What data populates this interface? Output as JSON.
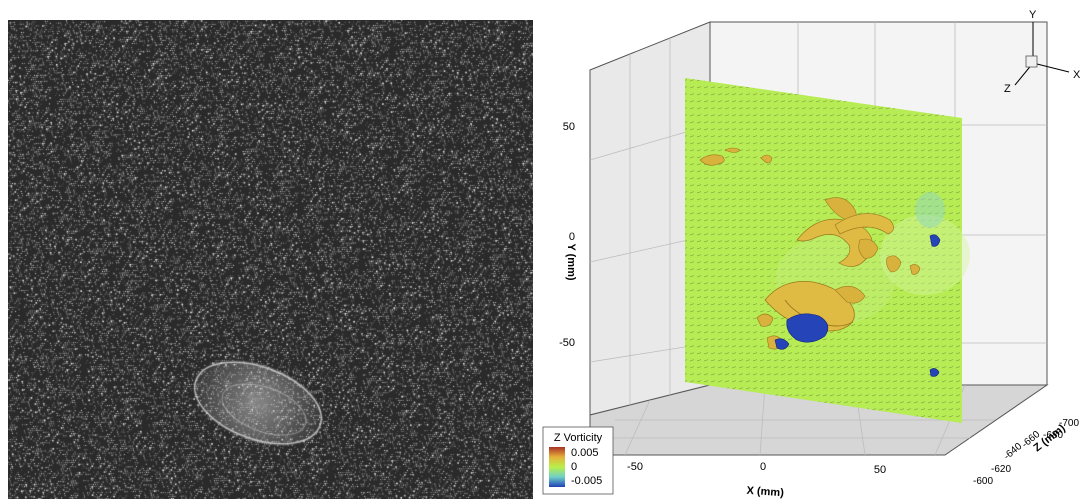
{
  "left_panel": {
    "subject": "jellyfish",
    "background": "particle-seeded dark water"
  },
  "right_panel": {
    "axes": {
      "x_title": "X (mm)",
      "y_title": "Y (mm)",
      "z_title": "Z (mm)",
      "x_ticks": [
        "-50",
        "0",
        "50"
      ],
      "y_ticks": [
        "50",
        "0",
        "-50"
      ],
      "z_ticks": [
        "-700",
        "-680",
        "-660",
        "-640",
        "-620",
        "-600"
      ]
    },
    "orientation_axes": {
      "y": "Y",
      "x": "X",
      "z": "Z"
    },
    "legend": {
      "title": "Z Vorticity",
      "labels": [
        "0.005",
        "0",
        "-0.005"
      ],
      "colors": [
        "#c0392b",
        "#b8f04a",
        "#1f3fb8"
      ]
    },
    "colors": {
      "plane": "#b5ec52",
      "isosurface_positive": "#d8b23c",
      "isosurface_negative": "#2444b8"
    }
  }
}
